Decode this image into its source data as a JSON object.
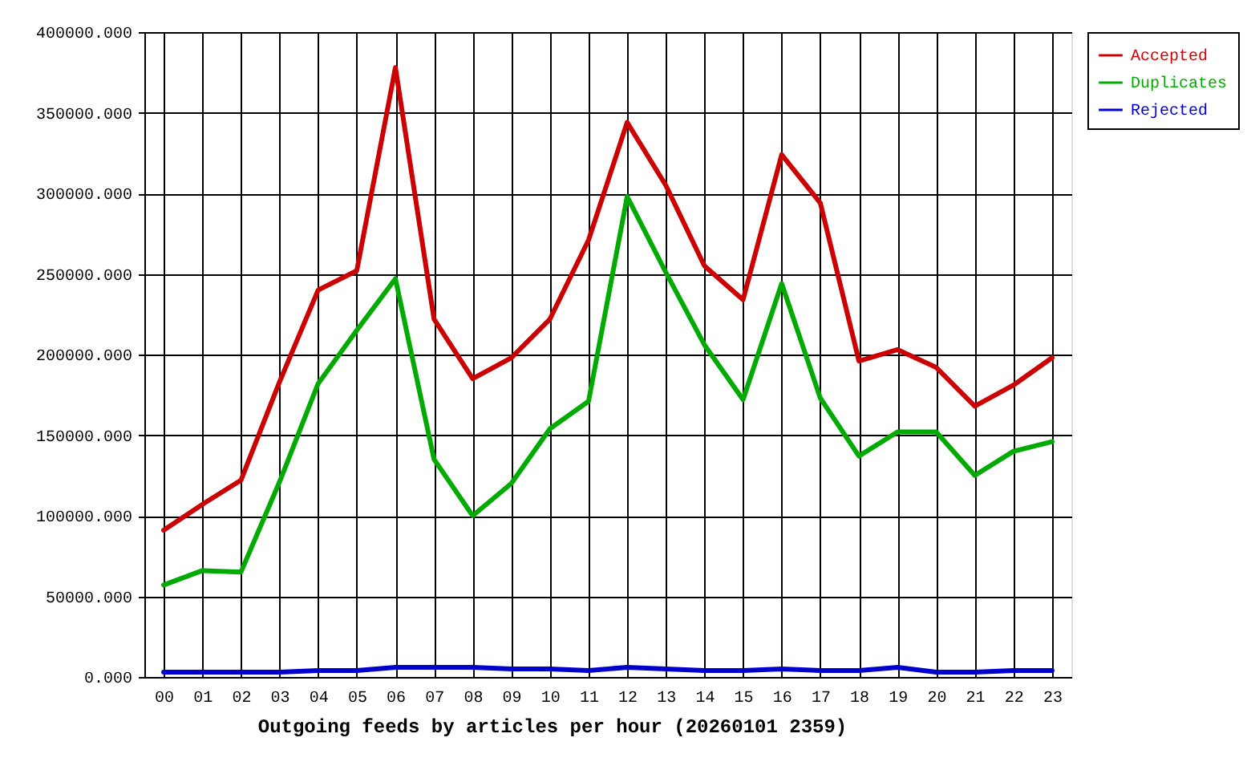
{
  "chart_data": {
    "type": "line",
    "xlabel": "Outgoing feeds by articles per hour (20260101 2359)",
    "categories": [
      "00",
      "01",
      "02",
      "03",
      "04",
      "05",
      "06",
      "07",
      "08",
      "09",
      "10",
      "11",
      "12",
      "13",
      "14",
      "15",
      "16",
      "17",
      "18",
      "19",
      "20",
      "21",
      "22",
      "23"
    ],
    "series": [
      {
        "name": "Accepted",
        "color": "#cc0000",
        "values": [
          91000,
          107000,
          122000,
          183000,
          240000,
          252000,
          378000,
          222000,
          185000,
          198000,
          222000,
          271000,
          344000,
          305000,
          255000,
          234000,
          324000,
          294000,
          196000,
          203000,
          192000,
          168000,
          181000,
          198000
        ]
      },
      {
        "name": "Duplicates",
        "color": "#00aa00",
        "values": [
          57000,
          66000,
          65000,
          121000,
          182000,
          215000,
          247000,
          135000,
          100000,
          120000,
          154000,
          171000,
          298000,
          251000,
          206000,
          172000,
          244000,
          173000,
          137000,
          152000,
          152000,
          125000,
          140000,
          146000
        ]
      },
      {
        "name": "Rejected",
        "color": "#0000cc",
        "values": [
          3000,
          3000,
          3000,
          3000,
          4000,
          4000,
          6000,
          6000,
          6000,
          5000,
          5000,
          4000,
          6000,
          5000,
          4000,
          4000,
          5000,
          4000,
          4000,
          6000,
          3000,
          3000,
          4000,
          4000
        ]
      }
    ],
    "ylim": [
      0,
      400000
    ],
    "yticks": [
      {
        "value": 0,
        "label": "0.000"
      },
      {
        "value": 50000,
        "label": "50000.000"
      },
      {
        "value": 100000,
        "label": "100000.000"
      },
      {
        "value": 150000,
        "label": "150000.000"
      },
      {
        "value": 200000,
        "label": "200000.000"
      },
      {
        "value": 250000,
        "label": "250000.000"
      },
      {
        "value": 300000,
        "label": "300000.000"
      },
      {
        "value": 350000,
        "label": "350000.000"
      },
      {
        "value": 400000,
        "label": "400000.000"
      }
    ],
    "grid": true,
    "legend": "top right",
    "line_style": "solid"
  }
}
